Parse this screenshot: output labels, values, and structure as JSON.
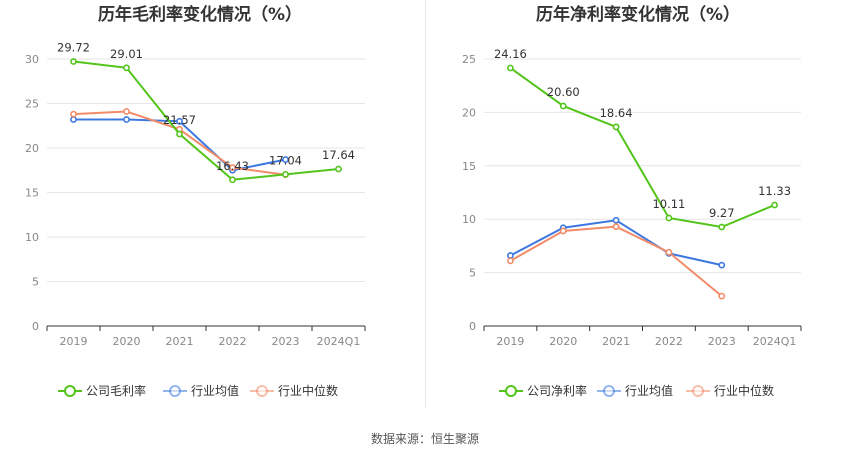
{
  "chart_data": [
    {
      "type": "line",
      "title": "历年毛利率变化情况（%）",
      "categories": [
        "2019",
        "2020",
        "2021",
        "2022",
        "2023",
        "2024Q1"
      ],
      "ylim": [
        0,
        30
      ],
      "yticks": [
        0,
        5,
        10,
        15,
        20,
        25,
        30
      ],
      "grid": true,
      "legend_position": "bottom",
      "series": [
        {
          "name": "公司毛利率",
          "color": "#52c41a",
          "values": [
            29.72,
            29.01,
            21.57,
            16.43,
            17.04,
            17.64
          ],
          "labels": [
            "29.72",
            "29.01",
            "21.57",
            "16.43",
            "17.04",
            "17.64"
          ]
        },
        {
          "name": "行业均值",
          "color": "#3d78e0",
          "values": [
            23.2,
            23.2,
            23.0,
            17.5,
            18.7,
            null
          ]
        },
        {
          "name": "行业中位数",
          "color": "#f28c68",
          "values": [
            23.8,
            24.1,
            22.1,
            17.8,
            17.0,
            null
          ]
        }
      ]
    },
    {
      "type": "line",
      "title": "历年净利率变化情况（%）",
      "categories": [
        "2019",
        "2020",
        "2021",
        "2022",
        "2023",
        "2024Q1"
      ],
      "ylim": [
        0,
        25
      ],
      "yticks": [
        0,
        5,
        10,
        15,
        20,
        25
      ],
      "grid": true,
      "legend_position": "bottom",
      "series": [
        {
          "name": "公司净利率",
          "color": "#52c41a",
          "values": [
            24.16,
            20.6,
            18.64,
            10.11,
            9.27,
            11.33
          ],
          "labels": [
            "24.16",
            "20.60",
            "18.64",
            "10.11",
            "9.27",
            "11.33"
          ]
        },
        {
          "name": "行业均值",
          "color": "#3d78e0",
          "values": [
            6.6,
            9.2,
            9.9,
            6.8,
            5.7,
            null
          ]
        },
        {
          "name": "行业中位数",
          "color": "#f28c68",
          "values": [
            6.1,
            8.9,
            9.3,
            6.9,
            2.8,
            null
          ]
        }
      ]
    }
  ],
  "footer": {
    "source": "数据来源：恒生聚源"
  }
}
